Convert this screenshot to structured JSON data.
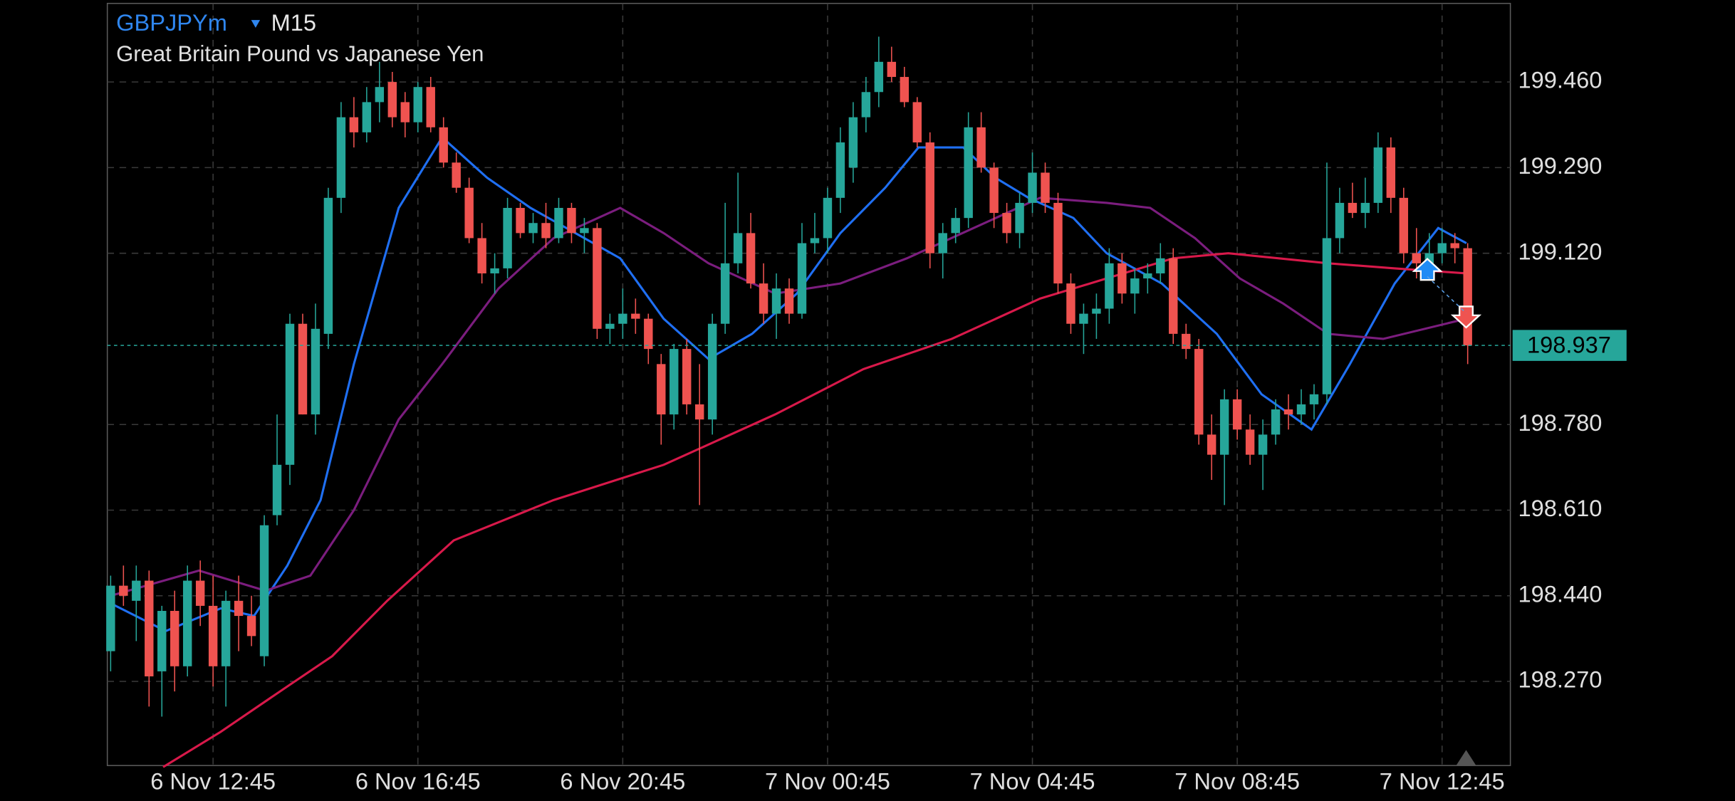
{
  "chart_data": {
    "type": "candlestick",
    "symbol": "GBPJPYm",
    "timeframe": "M15",
    "subtitle": "Great Britain Pound vs Japanese Yen",
    "categories": [
      null,
      null,
      null,
      null,
      null,
      null,
      null,
      null,
      "6 Nov 12:45",
      null,
      null,
      null,
      null,
      null,
      null,
      null,
      null,
      null,
      null,
      null,
      null,
      null,
      null,
      null,
      "6 Nov 16:45",
      null,
      null,
      null,
      null,
      null,
      null,
      null,
      null,
      null,
      null,
      null,
      null,
      null,
      null,
      null,
      "6 Nov 20:45",
      null,
      null,
      null,
      null,
      null,
      null,
      null,
      null,
      null,
      null,
      null,
      null,
      null,
      null,
      null,
      "7 Nov 00:45",
      null,
      null,
      null,
      null,
      null,
      null,
      null,
      null,
      null,
      null,
      null,
      null,
      null,
      null,
      null,
      "7 Nov 04:45",
      null,
      null,
      null,
      null,
      null,
      null,
      null,
      null,
      null,
      null,
      null,
      null,
      null,
      null,
      null,
      "7 Nov 08:45",
      null,
      null,
      null,
      null,
      null,
      null,
      null,
      null,
      null,
      null,
      null,
      null,
      null,
      null,
      null,
      "7 Nov 12:45",
      null,
      null
    ],
    "open": [
      198.33,
      198.46,
      198.43,
      198.47,
      198.29,
      198.41,
      198.3,
      198.47,
      198.42,
      198.3,
      198.43,
      198.4,
      198.32,
      198.6,
      198.7,
      198.98,
      198.8,
      198.96,
      199.23,
      199.39,
      199.36,
      199.42,
      199.46,
      199.42,
      199.38,
      199.45,
      199.37,
      199.3,
      199.25,
      199.15,
      199.08,
      199.09,
      199.21,
      199.16,
      199.18,
      199.15,
      199.21,
      199.16,
      199.17,
      198.97,
      198.98,
      199.0,
      198.99,
      198.9,
      198.8,
      198.93,
      198.82,
      198.79,
      198.98,
      199.1,
      199.16,
      199.06,
      199.0,
      199.05,
      199.0,
      199.14,
      199.15,
      199.23,
      199.29,
      199.39,
      199.44,
      199.5,
      199.47,
      199.42,
      199.34,
      199.12,
      199.16,
      199.19,
      199.37,
      199.29,
      199.2,
      199.16,
      199.22,
      199.28,
      199.22,
      199.06,
      198.98,
      199.0,
      199.01,
      199.1,
      199.04,
      199.07,
      199.08,
      199.11,
      198.96,
      198.93,
      198.76,
      198.72,
      198.83,
      198.77,
      198.72,
      198.76,
      198.81,
      198.8,
      198.82,
      198.84,
      199.15,
      199.22,
      199.2,
      199.22,
      199.33,
      199.23,
      199.12,
      199.1,
      199.12,
      199.14,
      199.13
    ],
    "high": [
      198.48,
      198.5,
      198.5,
      198.49,
      198.42,
      198.45,
      198.5,
      198.51,
      198.48,
      198.45,
      198.48,
      198.44,
      198.6,
      198.8,
      199.0,
      199.0,
      199.02,
      199.25,
      199.42,
      199.43,
      199.45,
      199.5,
      199.48,
      199.44,
      199.46,
      199.47,
      199.39,
      199.32,
      199.27,
      199.18,
      199.12,
      199.23,
      199.22,
      199.2,
      199.22,
      199.23,
      199.22,
      199.19,
      199.18,
      199.0,
      199.05,
      199.03,
      199.0,
      198.92,
      198.94,
      198.95,
      198.9,
      199.0,
      199.22,
      199.28,
      199.2,
      199.1,
      199.08,
      199.07,
      199.18,
      199.2,
      199.25,
      199.37,
      199.42,
      199.47,
      199.55,
      199.53,
      199.49,
      199.43,
      199.36,
      199.18,
      199.21,
      199.4,
      199.4,
      199.3,
      199.22,
      199.24,
      199.32,
      199.3,
      199.24,
      199.08,
      199.02,
      199.04,
      199.13,
      199.12,
      199.09,
      199.1,
      199.14,
      199.13,
      198.98,
      198.95,
      198.8,
      198.85,
      198.85,
      198.8,
      198.79,
      198.83,
      198.84,
      198.85,
      198.86,
      199.3,
      199.25,
      199.26,
      199.27,
      199.36,
      199.35,
      199.25,
      199.17,
      199.16,
      199.17,
      199.16,
      199.14
    ],
    "low": [
      198.29,
      198.42,
      198.35,
      198.22,
      198.2,
      198.25,
      198.28,
      198.38,
      198.26,
      198.22,
      198.33,
      198.34,
      198.3,
      198.58,
      198.66,
      198.8,
      198.76,
      198.93,
      199.2,
      199.33,
      199.34,
      199.38,
      199.37,
      199.35,
      199.36,
      199.36,
      199.29,
      199.24,
      199.14,
      199.06,
      199.04,
      199.07,
      199.15,
      199.14,
      199.13,
      199.14,
      199.14,
      199.12,
      198.95,
      198.94,
      198.95,
      198.96,
      198.9,
      198.74,
      198.77,
      198.8,
      198.62,
      198.76,
      198.96,
      199.08,
      199.05,
      198.98,
      198.95,
      198.98,
      198.99,
      199.12,
      199.12,
      199.2,
      199.26,
      199.36,
      199.41,
      199.46,
      199.41,
      199.33,
      199.09,
      199.07,
      199.14,
      199.17,
      199.28,
      199.17,
      199.14,
      199.13,
      199.2,
      199.2,
      199.04,
      198.96,
      198.92,
      198.95,
      198.98,
      199.02,
      199.0,
      199.04,
      199.06,
      198.94,
      198.91,
      198.74,
      198.67,
      198.62,
      198.75,
      198.7,
      198.65,
      198.74,
      198.77,
      198.78,
      198.79,
      198.82,
      199.12,
      199.19,
      199.17,
      199.2,
      199.2,
      199.1,
      199.07,
      199.08,
      199.1,
      199.1,
      198.9
    ],
    "close": [
      198.46,
      198.44,
      198.47,
      198.28,
      198.41,
      198.3,
      198.47,
      198.42,
      198.3,
      198.43,
      198.4,
      198.36,
      198.58,
      198.7,
      198.98,
      198.8,
      198.97,
      199.23,
      199.39,
      199.36,
      199.42,
      199.45,
      199.39,
      199.38,
      199.45,
      199.37,
      199.3,
      199.25,
      199.15,
      199.08,
      199.09,
      199.21,
      199.16,
      199.18,
      199.15,
      199.21,
      199.16,
      199.17,
      198.97,
      198.98,
      199.0,
      198.99,
      198.93,
      198.8,
      198.93,
      198.82,
      198.79,
      198.98,
      199.1,
      199.16,
      199.06,
      199.0,
      199.05,
      199.0,
      199.14,
      199.15,
      199.23,
      199.34,
      199.39,
      199.44,
      199.5,
      199.47,
      199.42,
      199.34,
      199.12,
      199.16,
      199.19,
      199.37,
      199.29,
      199.2,
      199.16,
      199.22,
      199.28,
      199.22,
      199.06,
      198.98,
      199.0,
      199.01,
      199.1,
      199.04,
      199.07,
      199.08,
      199.11,
      198.96,
      198.93,
      198.76,
      198.72,
      198.83,
      198.77,
      198.72,
      198.76,
      198.81,
      198.8,
      198.82,
      198.84,
      199.15,
      199.22,
      199.2,
      199.22,
      199.33,
      199.23,
      199.12,
      199.1,
      199.12,
      199.14,
      199.13,
      198.937
    ],
    "up_color": "#26a69a",
    "down_color": "#ef5350",
    "indicators": [
      {
        "color": "#1f6ff2",
        "x": [
          0,
          4.3,
          8.6,
          11.2,
          13.8,
          16.4,
          19.0,
          22.5,
          25.9,
          29.4,
          32.8,
          36.3,
          39.8,
          43.2,
          46.7,
          50.1,
          53.6,
          57.0,
          60.5,
          63.1,
          66.6,
          69.1,
          71.7,
          75.2,
          77.8,
          82.1,
          86.4,
          89.9,
          93.8,
          96.8,
          100.3,
          103.7,
          105.9
        ],
        "values": [
          198.425,
          198.37,
          198.415,
          198.4,
          198.5,
          198.63,
          198.9,
          199.21,
          199.35,
          199.27,
          199.21,
          199.16,
          199.11,
          198.99,
          198.91,
          198.96,
          199.04,
          199.16,
          199.25,
          199.33,
          199.33,
          199.27,
          199.23,
          199.19,
          199.12,
          199.06,
          198.96,
          198.84,
          198.77,
          198.9,
          199.06,
          199.17,
          199.14
        ]
      },
      {
        "color": "#7b1d7e",
        "x": [
          0,
          6.9,
          12.1,
          15.6,
          19.0,
          22.5,
          25.9,
          30.3,
          34.6,
          39.8,
          43.2,
          46.7,
          51.9,
          57.0,
          62.2,
          67.4,
          72.6,
          77.8,
          81.2,
          84.7,
          88.2,
          91.6,
          95.1,
          99.4,
          105.9
        ],
        "values": [
          198.44,
          198.49,
          198.45,
          198.48,
          198.61,
          198.79,
          198.9,
          199.05,
          199.15,
          199.21,
          199.16,
          199.1,
          199.04,
          199.06,
          199.11,
          199.17,
          199.23,
          199.22,
          199.21,
          199.15,
          199.07,
          199.02,
          198.96,
          198.95,
          198.99
        ]
      },
      {
        "color": "#d8194a",
        "x": [
          4.1,
          8.6,
          13.8,
          17.3,
          21.6,
          26.8,
          34.6,
          43.2,
          51.9,
          58.8,
          65.7,
          72.6,
          77.8,
          83.0,
          87.3,
          95.1,
          100.3,
          105.9
        ],
        "values": [
          198.1,
          198.17,
          198.26,
          198.32,
          198.43,
          198.55,
          198.63,
          198.7,
          198.8,
          198.89,
          198.95,
          199.03,
          199.07,
          199.11,
          199.12,
          199.1,
          199.09,
          199.08
        ]
      }
    ],
    "last_price": 198.937,
    "ylim": [
      198.103,
      199.616
    ],
    "yticks": [
      {
        "value": 198.27,
        "label": "198.270"
      },
      {
        "value": 198.44,
        "label": "198.440"
      },
      {
        "value": 198.61,
        "label": "198.610"
      },
      {
        "value": 198.78,
        "label": "198.780"
      },
      {
        "value": 199.12,
        "label": "199.120"
      },
      {
        "value": 199.29,
        "label": "199.290"
      },
      {
        "value": 199.46,
        "label": "199.460"
      }
    ],
    "grid": true
  }
}
